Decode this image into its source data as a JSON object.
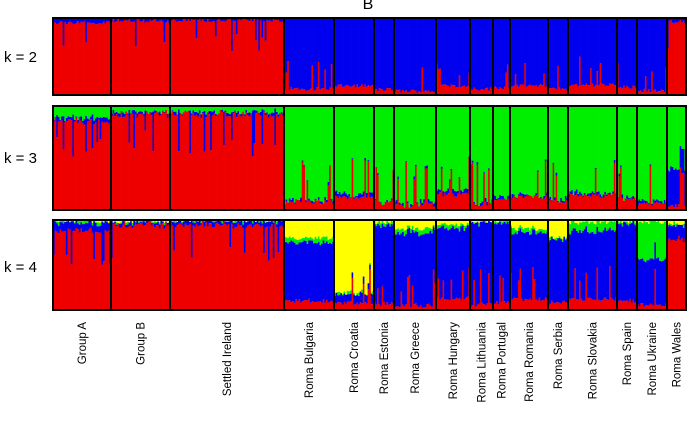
{
  "chart_data": {
    "type": "bar",
    "subtype": "stacked-admixture (STRUCTURE plot)",
    "title": "B",
    "populations": [
      "Group A",
      "Group B",
      "Settled Ireland",
      "Roma Bulgaria",
      "Roma Croatia",
      "Roma Estonia",
      "Roma Greece",
      "Roma Hungary",
      "Roma Lithuania",
      "Roma Portugal",
      "Roma Romania",
      "Roma Serbia",
      "Roma Slovakia",
      "Roma Spain",
      "Roma Ukraine",
      "Roma Wales"
    ],
    "colors": {
      "red": "#ee0000",
      "blue": "#0000ee",
      "green": "#00ee00",
      "yellow": "#ffff00",
      "purple": "#9933aa",
      "teal": "#33bbbb"
    },
    "panels": [
      {
        "label": "k = 2",
        "cluster_colors": [
          "red",
          "blue"
        ],
        "mean_proportions": [
          [
            0.94,
            0.06
          ],
          [
            0.96,
            0.04
          ],
          [
            0.97,
            0.03
          ],
          [
            0.08,
            0.92
          ],
          [
            0.12,
            0.88
          ],
          [
            0.07,
            0.93
          ],
          [
            0.05,
            0.95
          ],
          [
            0.12,
            0.88
          ],
          [
            0.08,
            0.92
          ],
          [
            0.1,
            0.9
          ],
          [
            0.12,
            0.88
          ],
          [
            0.08,
            0.92
          ],
          [
            0.13,
            0.87
          ],
          [
            0.1,
            0.9
          ],
          [
            0.06,
            0.94
          ],
          [
            0.95,
            0.05
          ]
        ]
      },
      {
        "label": "k = 3",
        "cluster_colors": [
          "red",
          "blue",
          "green"
        ],
        "mean_proportions": [
          [
            0.85,
            0.03,
            0.12
          ],
          [
            0.92,
            0.02,
            0.06
          ],
          [
            0.92,
            0.02,
            0.06
          ],
          [
            0.08,
            0.02,
            0.9
          ],
          [
            0.12,
            0.03,
            0.85
          ],
          [
            0.07,
            0.01,
            0.92
          ],
          [
            0.05,
            0.02,
            0.93
          ],
          [
            0.15,
            0.03,
            0.82
          ],
          [
            0.06,
            0.02,
            0.92
          ],
          [
            0.1,
            0.02,
            0.88
          ],
          [
            0.12,
            0.02,
            0.86
          ],
          [
            0.08,
            0.02,
            0.9
          ],
          [
            0.14,
            0.02,
            0.84
          ],
          [
            0.1,
            0.02,
            0.88
          ],
          [
            0.06,
            0.02,
            0.92
          ],
          [
            0.05,
            0.35,
            0.6
          ]
        ]
      },
      {
        "label": "k = 4",
        "cluster_colors": [
          "red",
          "blue",
          "green",
          "yellow"
        ],
        "mean_proportions": [
          [
            0.88,
            0.09,
            0.02,
            0.01
          ],
          [
            0.95,
            0.03,
            0.01,
            0.01
          ],
          [
            0.95,
            0.04,
            0.01,
            0.0
          ],
          [
            0.1,
            0.65,
            0.05,
            0.2
          ],
          [
            0.08,
            0.1,
            0.02,
            0.8
          ],
          [
            0.07,
            0.88,
            0.03,
            0.02
          ],
          [
            0.05,
            0.8,
            0.05,
            0.1
          ],
          [
            0.13,
            0.78,
            0.04,
            0.05
          ],
          [
            0.06,
            0.9,
            0.02,
            0.02
          ],
          [
            0.08,
            0.88,
            0.02,
            0.02
          ],
          [
            0.12,
            0.73,
            0.05,
            0.1
          ],
          [
            0.08,
            0.7,
            0.02,
            0.2
          ],
          [
            0.12,
            0.75,
            0.1,
            0.03
          ],
          [
            0.1,
            0.86,
            0.02,
            0.02
          ],
          [
            0.06,
            0.5,
            0.42,
            0.02
          ],
          [
            0.8,
            0.15,
            0.02,
            0.03
          ]
        ]
      }
    ]
  }
}
